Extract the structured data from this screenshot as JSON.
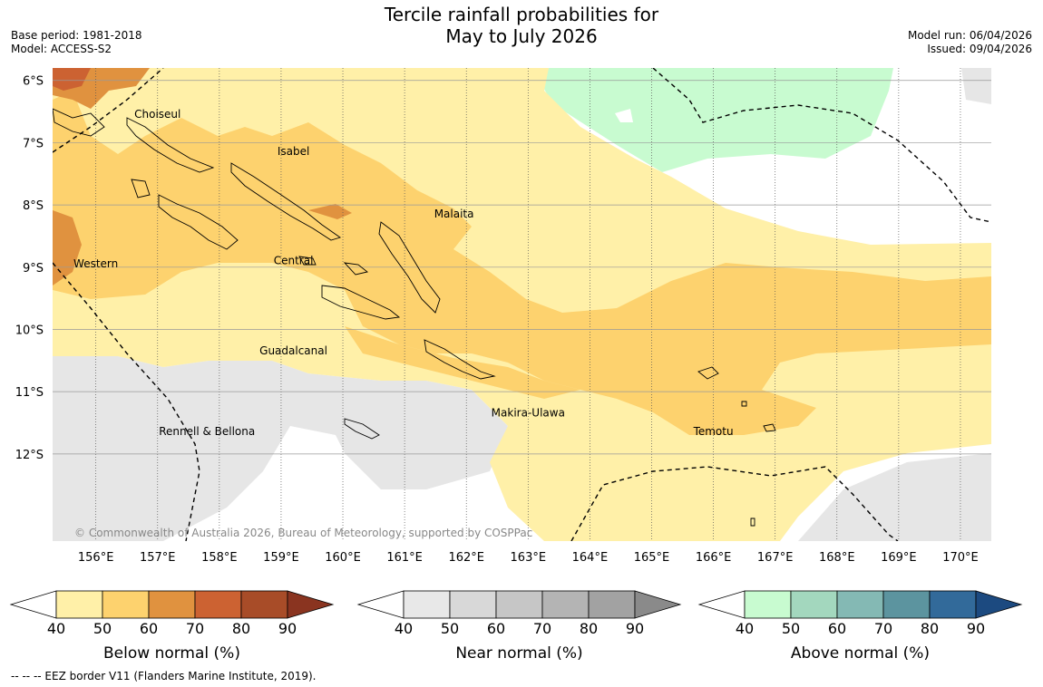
{
  "header": {
    "title_line1": "Tercile rainfall probabilities for",
    "title_line2": "May to July 2026",
    "base_period": "Base period: 1981-2018",
    "model": "Model: ACCESS-S2",
    "model_run": "Model run: 06/04/2026",
    "issued": "Issued: 09/04/2026"
  },
  "map": {
    "lat_labels": [
      "6°S",
      "7°S",
      "8°S",
      "9°S",
      "10°S",
      "11°S",
      "12°S"
    ],
    "lat_values": [
      6,
      7,
      8,
      9,
      10,
      11,
      12
    ],
    "lon_labels": [
      "156°E",
      "157°E",
      "158°E",
      "159°E",
      "160°E",
      "161°E",
      "162°E",
      "163°E",
      "164°E",
      "165°E",
      "166°E",
      "167°E",
      "168°E",
      "169°E",
      "170°E"
    ],
    "lon_values": [
      156,
      157,
      158,
      159,
      160,
      161,
      162,
      163,
      164,
      165,
      166,
      167,
      168,
      169,
      170
    ],
    "extent": {
      "lon_min": 155.3,
      "lon_max": 170.5,
      "lat_min": 5.8,
      "lat_max": 13.4
    },
    "provinces": [
      {
        "name": "Choiseul",
        "lon": 157.0,
        "lat": 6.6
      },
      {
        "name": "Isabel",
        "lon": 159.2,
        "lat": 7.2
      },
      {
        "name": "Malaita",
        "lon": 161.8,
        "lat": 8.2
      },
      {
        "name": "Western",
        "lon": 156.0,
        "lat": 9.0
      },
      {
        "name": "Central",
        "lon": 159.2,
        "lat": 8.95
      },
      {
        "name": "Guadalcanal",
        "lon": 159.2,
        "lat": 10.4
      },
      {
        "name": "Makira-Ulawa",
        "lon": 163.0,
        "lat": 11.4
      },
      {
        "name": "Rennell & Bellona",
        "lon": 157.8,
        "lat": 11.7
      },
      {
        "name": "Temotu",
        "lon": 166.0,
        "lat": 11.7
      }
    ],
    "copyright": "© Commonwealth of Australia 2026, Bureau of Meteorology, supported by COSPPac"
  },
  "colorbars": [
    {
      "label": "Below normal (%)",
      "ticks": [
        "40",
        "50",
        "60",
        "70",
        "80",
        "90"
      ],
      "colors": [
        "#fff0a8",
        "#fdd26e",
        "#e0923f",
        "#cc6232",
        "#a84c28",
        "#8a3420"
      ]
    },
    {
      "label": "Near normal (%)",
      "ticks": [
        "40",
        "50",
        "60",
        "70",
        "80",
        "90"
      ],
      "colors": [
        "#e8e8e8",
        "#d8d8d8",
        "#c6c6c6",
        "#b4b4b4",
        "#a2a2a2",
        "#8a8a8a"
      ]
    },
    {
      "label": "Above normal (%)",
      "ticks": [
        "40",
        "50",
        "60",
        "70",
        "80",
        "90"
      ],
      "colors": [
        "#c8fbd0",
        "#a3d7be",
        "#84b9b4",
        "#5c949f",
        "#326a9a",
        "#1c4a80"
      ]
    }
  ],
  "footnote": "--  --  -- EEZ border V11 (Flanders Marine Institute, 2019).",
  "colors": {
    "below_40": "#fff0a8",
    "below_50": "#fdd26e",
    "below_60": "#e0923f",
    "near_40": "#e6e6e6",
    "above_40": "#c8fbd0",
    "land": "#fdd26e"
  }
}
